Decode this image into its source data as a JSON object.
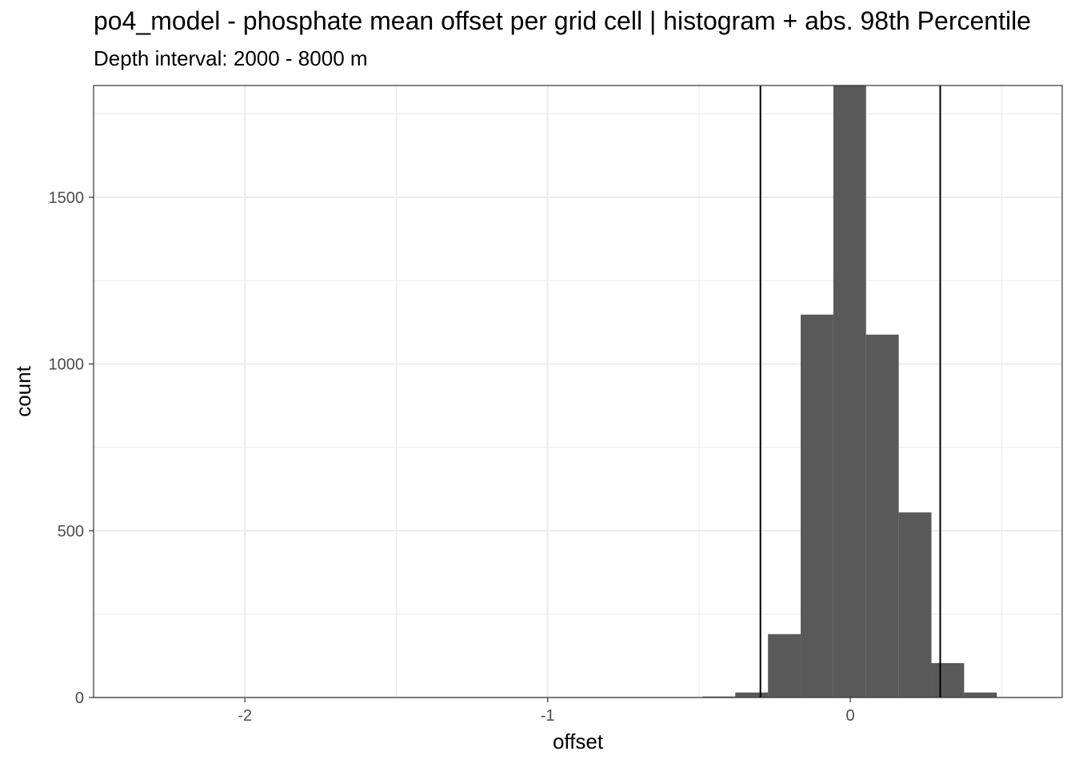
{
  "chart_data": {
    "type": "bar",
    "title": "po4_model  -  phosphate mean offset per grid cell | histogram + abs. 98th Percentile",
    "subtitle": "Depth interval: 2000 - 8000 m",
    "xlabel": "offset",
    "ylabel": "count",
    "xlim": [
      -2.5,
      0.7
    ],
    "ylim": [
      0,
      1835
    ],
    "x_ticks": [
      -2,
      -1,
      0
    ],
    "x_tick_labels": [
      "-2",
      "-1",
      "0"
    ],
    "y_ticks": [
      0,
      500,
      1000,
      1500
    ],
    "y_tick_labels": [
      "0",
      "500",
      "1000",
      "1500"
    ],
    "grid": true,
    "bin_width": 0.108,
    "bins": [
      {
        "x0": -0.488,
        "x1": -0.38,
        "count": 3
      },
      {
        "x0": -0.38,
        "x1": -0.272,
        "count": 15
      },
      {
        "x0": -0.272,
        "x1": -0.164,
        "count": 190
      },
      {
        "x0": -0.164,
        "x1": -0.056,
        "count": 1148
      },
      {
        "x0": -0.056,
        "x1": 0.052,
        "count": 1835
      },
      {
        "x0": 0.052,
        "x1": 0.16,
        "count": 1088
      },
      {
        "x0": 0.16,
        "x1": 0.268,
        "count": 555
      },
      {
        "x0": 0.268,
        "x1": 0.376,
        "count": 103
      },
      {
        "x0": 0.376,
        "x1": 0.484,
        "count": 15
      }
    ],
    "percentile_lines": [
      -0.297,
      0.297
    ],
    "colors": {
      "bar": "#595959",
      "line": "#000000",
      "grid": "#ebebeb",
      "panel_border": "#333333"
    }
  }
}
